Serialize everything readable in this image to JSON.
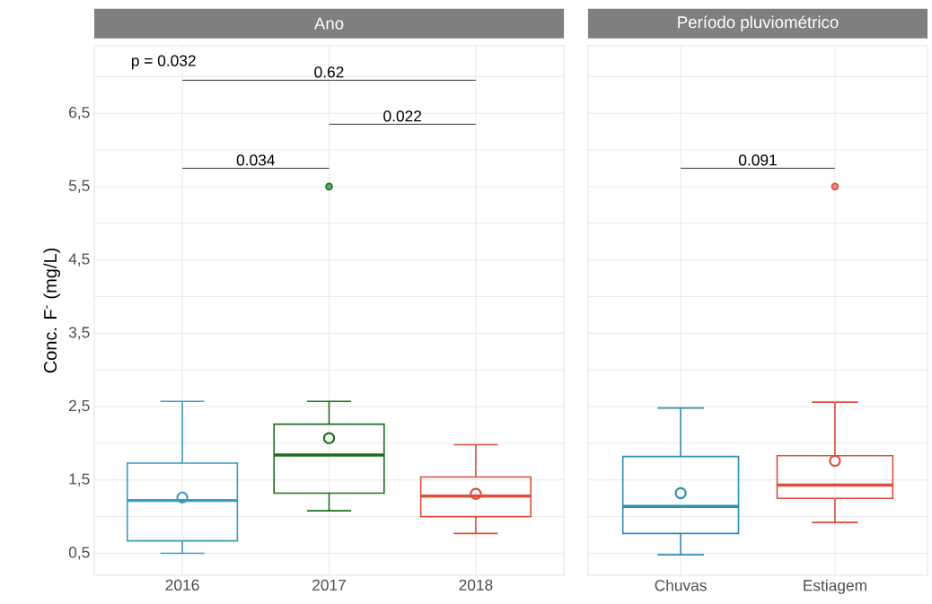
{
  "chart_data": [
    {
      "type": "box",
      "title": "Ano",
      "ylabel": "Conc. F$^{-}$ (mg/L)",
      "categories": [
        "2016",
        "2017",
        "2018"
      ],
      "colors": [
        "#3a9cc0",
        "#1b6f1b",
        "#d9503c"
      ],
      "boxes": [
        {
          "low": 0.5,
          "q1": 0.67,
          "median": 1.22,
          "q3": 1.73,
          "high": 2.57,
          "mean": 1.26
        },
        {
          "low": 1.08,
          "q1": 1.32,
          "median": 1.84,
          "q3": 2.26,
          "high": 2.57,
          "mean": 2.07,
          "outliers": [
            5.5
          ]
        },
        {
          "low": 0.77,
          "q1": 1.0,
          "median": 1.28,
          "q3": 1.54,
          "high": 1.98,
          "mean": 1.31
        }
      ],
      "ylim": [
        0.2,
        7.42
      ],
      "yticks": [
        {
          "value": 0.5,
          "label": "0,5"
        },
        {
          "value": 1,
          "label": null
        },
        {
          "value": 1.5,
          "label": "1,5"
        },
        {
          "value": 2,
          "label": null
        },
        {
          "value": 2.5,
          "label": "2,5"
        },
        {
          "value": 3,
          "label": null
        },
        {
          "value": 3.5,
          "label": "3,5"
        },
        {
          "value": 4,
          "label": null
        },
        {
          "value": 4.5,
          "label": "4,5"
        },
        {
          "value": 5,
          "label": null
        },
        {
          "value": 5.5,
          "label": "5,5"
        },
        {
          "value": 6,
          "label": null
        },
        {
          "value": 6.5,
          "label": "6,5"
        },
        {
          "value": 7,
          "label": null
        }
      ],
      "grid": true,
      "annotations": [
        "p = 0.032",
        "0.034",
        "0.022",
        "0.62"
      ]
    },
    {
      "type": "box",
      "title": "Período pluviométrico",
      "categories": [
        "Chuvas",
        "Estiagem"
      ],
      "colors": [
        "#2e8fb0",
        "#d9503c"
      ],
      "boxes": [
        {
          "low": 0.48,
          "q1": 0.77,
          "median": 1.14,
          "q3": 1.82,
          "high": 2.48,
          "mean": 1.32
        },
        {
          "low": 0.92,
          "q1": 1.25,
          "median": 1.43,
          "q3": 1.83,
          "high": 2.56,
          "mean": 1.76,
          "outliers": [
            5.5
          ]
        }
      ],
      "ylim": [
        0.2,
        7.42
      ],
      "yticks": [
        {
          "value": 0.5,
          "label": null
        },
        {
          "value": 1,
          "label": null
        },
        {
          "value": 1.5,
          "label": null
        },
        {
          "value": 2,
          "label": null
        },
        {
          "value": 2.5,
          "label": null
        },
        {
          "value": 3,
          "label": null
        },
        {
          "value": 3.5,
          "label": null
        },
        {
          "value": 4,
          "label": null
        },
        {
          "value": 4.5,
          "label": null
        },
        {
          "value": 5,
          "label": null
        },
        {
          "value": 5.5,
          "label": null
        },
        {
          "value": 6,
          "label": null
        },
        {
          "value": 6.5,
          "label": null
        },
        {
          "value": 7,
          "label": null
        }
      ],
      "grid": true,
      "tick_labels": "x",
      "annotations": [
        "0.091"
      ]
    }
  ]
}
